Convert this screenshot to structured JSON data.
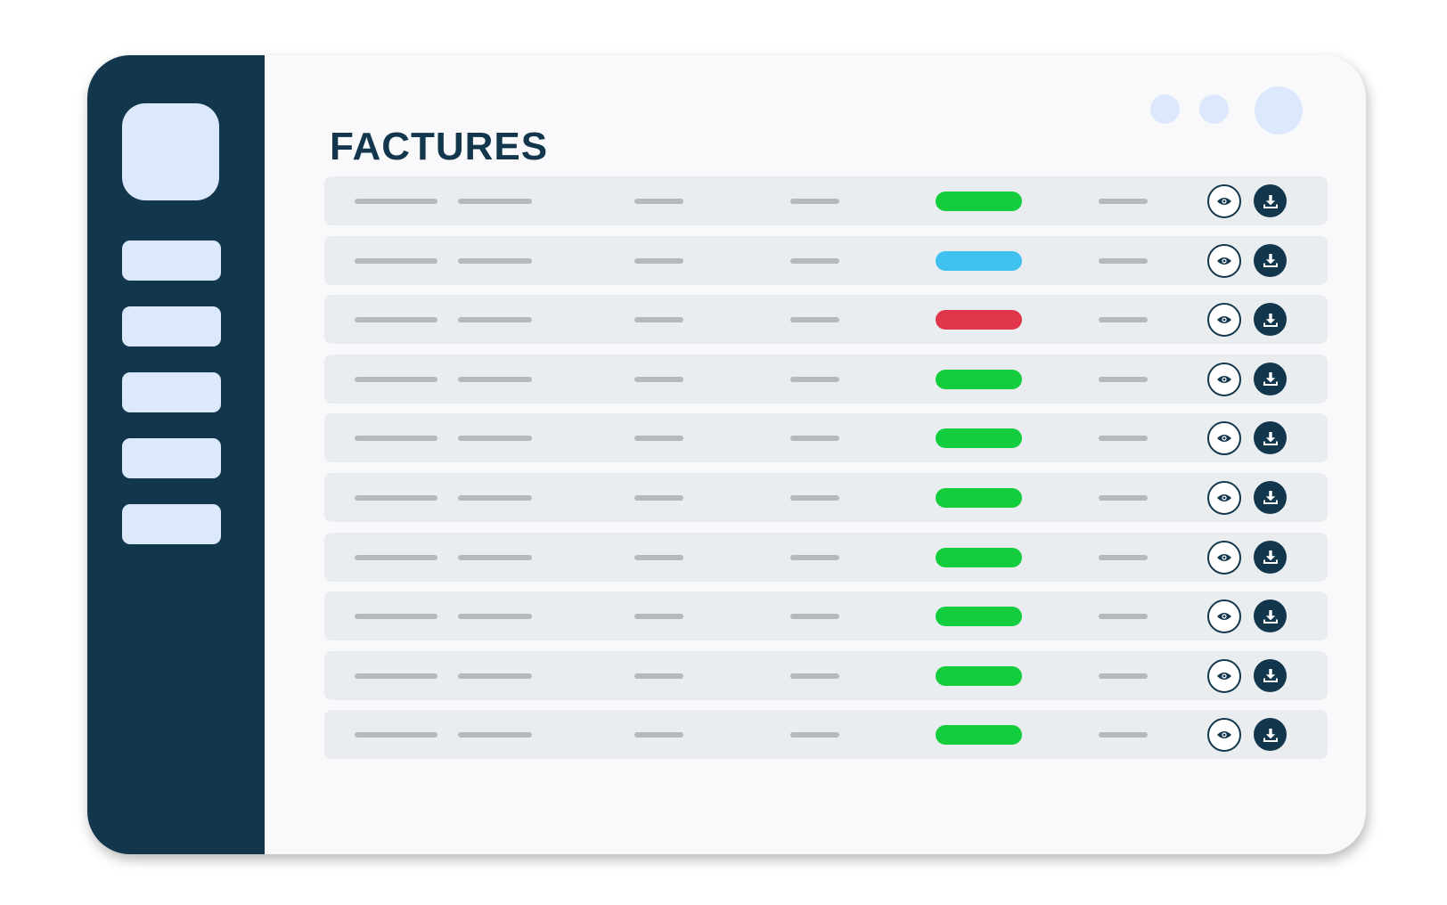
{
  "page": {
    "title": "FACTURES"
  },
  "sidebar": {
    "logo": "logo-placeholder",
    "items": [
      {
        "label": ""
      },
      {
        "label": ""
      },
      {
        "label": ""
      },
      {
        "label": ""
      },
      {
        "label": ""
      }
    ]
  },
  "header": {
    "controls": [
      "circle-button",
      "circle-button",
      "avatar"
    ]
  },
  "colors": {
    "sidebar": "#12364c",
    "accent_light": "#dce9fd",
    "status_paid": "#14cd3c",
    "status_pending": "#3ec1ef",
    "status_overdue": "#e0354a"
  },
  "invoices": {
    "actions": {
      "view_icon": "eye-icon",
      "download_icon": "download-icon"
    },
    "rows": [
      {
        "status": "paid"
      },
      {
        "status": "pending"
      },
      {
        "status": "overdue"
      },
      {
        "status": "paid"
      },
      {
        "status": "paid"
      },
      {
        "status": "paid"
      },
      {
        "status": "paid"
      },
      {
        "status": "paid"
      },
      {
        "status": "paid"
      },
      {
        "status": "paid"
      }
    ]
  }
}
